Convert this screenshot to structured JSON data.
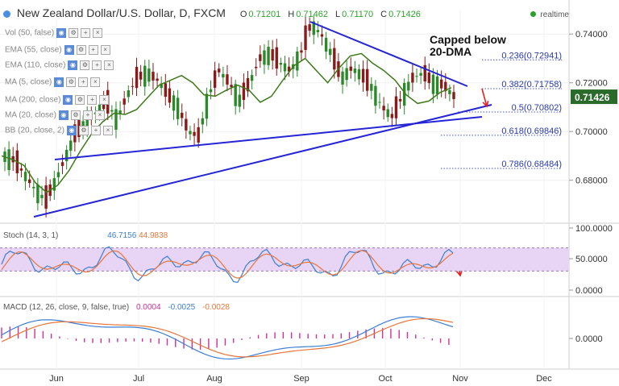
{
  "header": {
    "title": "New Zealand Dollar/U.S. Dollar, D, FXCM",
    "ohlc": [
      {
        "k": "O",
        "v": "0.71201"
      },
      {
        "k": "H",
        "v": "0.71462"
      },
      {
        "k": "L",
        "v": "0.71170"
      },
      {
        "k": "C",
        "v": "0.71426"
      }
    ],
    "realtime": "realtime"
  },
  "indicators": [
    "Vol (50, false)",
    "EMA (55, close)",
    "EMA (110, close)",
    "MA (5, close)",
    "MA (200, close)",
    "MA (20, close)",
    "BB (20, close, 2)"
  ],
  "annotation": "Capped below 20-DMA",
  "stoch": {
    "label": "Stoch (14, 3, 1)",
    "k": "46.7156",
    "d": "44.9838"
  },
  "macd": {
    "label": "MACD (12, 26, close, 9, false, true)",
    "hist": "0.0004",
    "macd": "-0.0025",
    "signal": "-0.0028"
  },
  "chart_data": {
    "type": "line",
    "title": "New Zealand Dollar/U.S. Dollar, D, FXCM",
    "price_axis": {
      "ticks": [
        "0.74000",
        "0.72000",
        "0.70000",
        "0.68000"
      ],
      "last_price": "0.71426",
      "ylim": [
        0.667,
        0.75
      ]
    },
    "x_ticks": [
      "Jun",
      "Jul",
      "Aug",
      "Sep",
      "Oct",
      "Nov",
      "Dec"
    ],
    "fibonacci": [
      {
        "label": "0.236(0.72941)",
        "value": 0.72941
      },
      {
        "label": "0.382(0.71758)",
        "value": 0.71758
      },
      {
        "label": "0.5(0.70802)",
        "value": 0.70802
      },
      {
        "label": "0.618(0.69846)",
        "value": 0.69846
      },
      {
        "label": "0.786(0.68484)",
        "value": 0.68484
      }
    ],
    "series": [
      {
        "name": "MA (20, close)",
        "values": [
          0.69,
          0.6885,
          0.686,
          0.679,
          0.675,
          0.678,
          0.684,
          0.692,
          0.699,
          0.704,
          0.7075,
          0.707,
          0.709,
          0.714,
          0.719,
          0.721,
          0.723,
          0.72,
          0.715,
          0.7145,
          0.717,
          0.719,
          0.717,
          0.712,
          0.7145,
          0.721,
          0.727,
          0.73,
          0.725,
          0.72,
          0.726,
          0.731,
          0.732,
          0.728,
          0.725,
          0.721,
          0.715,
          0.7115,
          0.7125,
          0.716,
          0.718
        ]
      }
    ],
    "oscillators": {
      "stoch": {
        "ticks": [
          "100.0000",
          "50.0000",
          "0.0000"
        ],
        "bands": [
          20,
          80
        ]
      },
      "macd": {
        "ticks": [
          "0.0000"
        ]
      }
    }
  }
}
